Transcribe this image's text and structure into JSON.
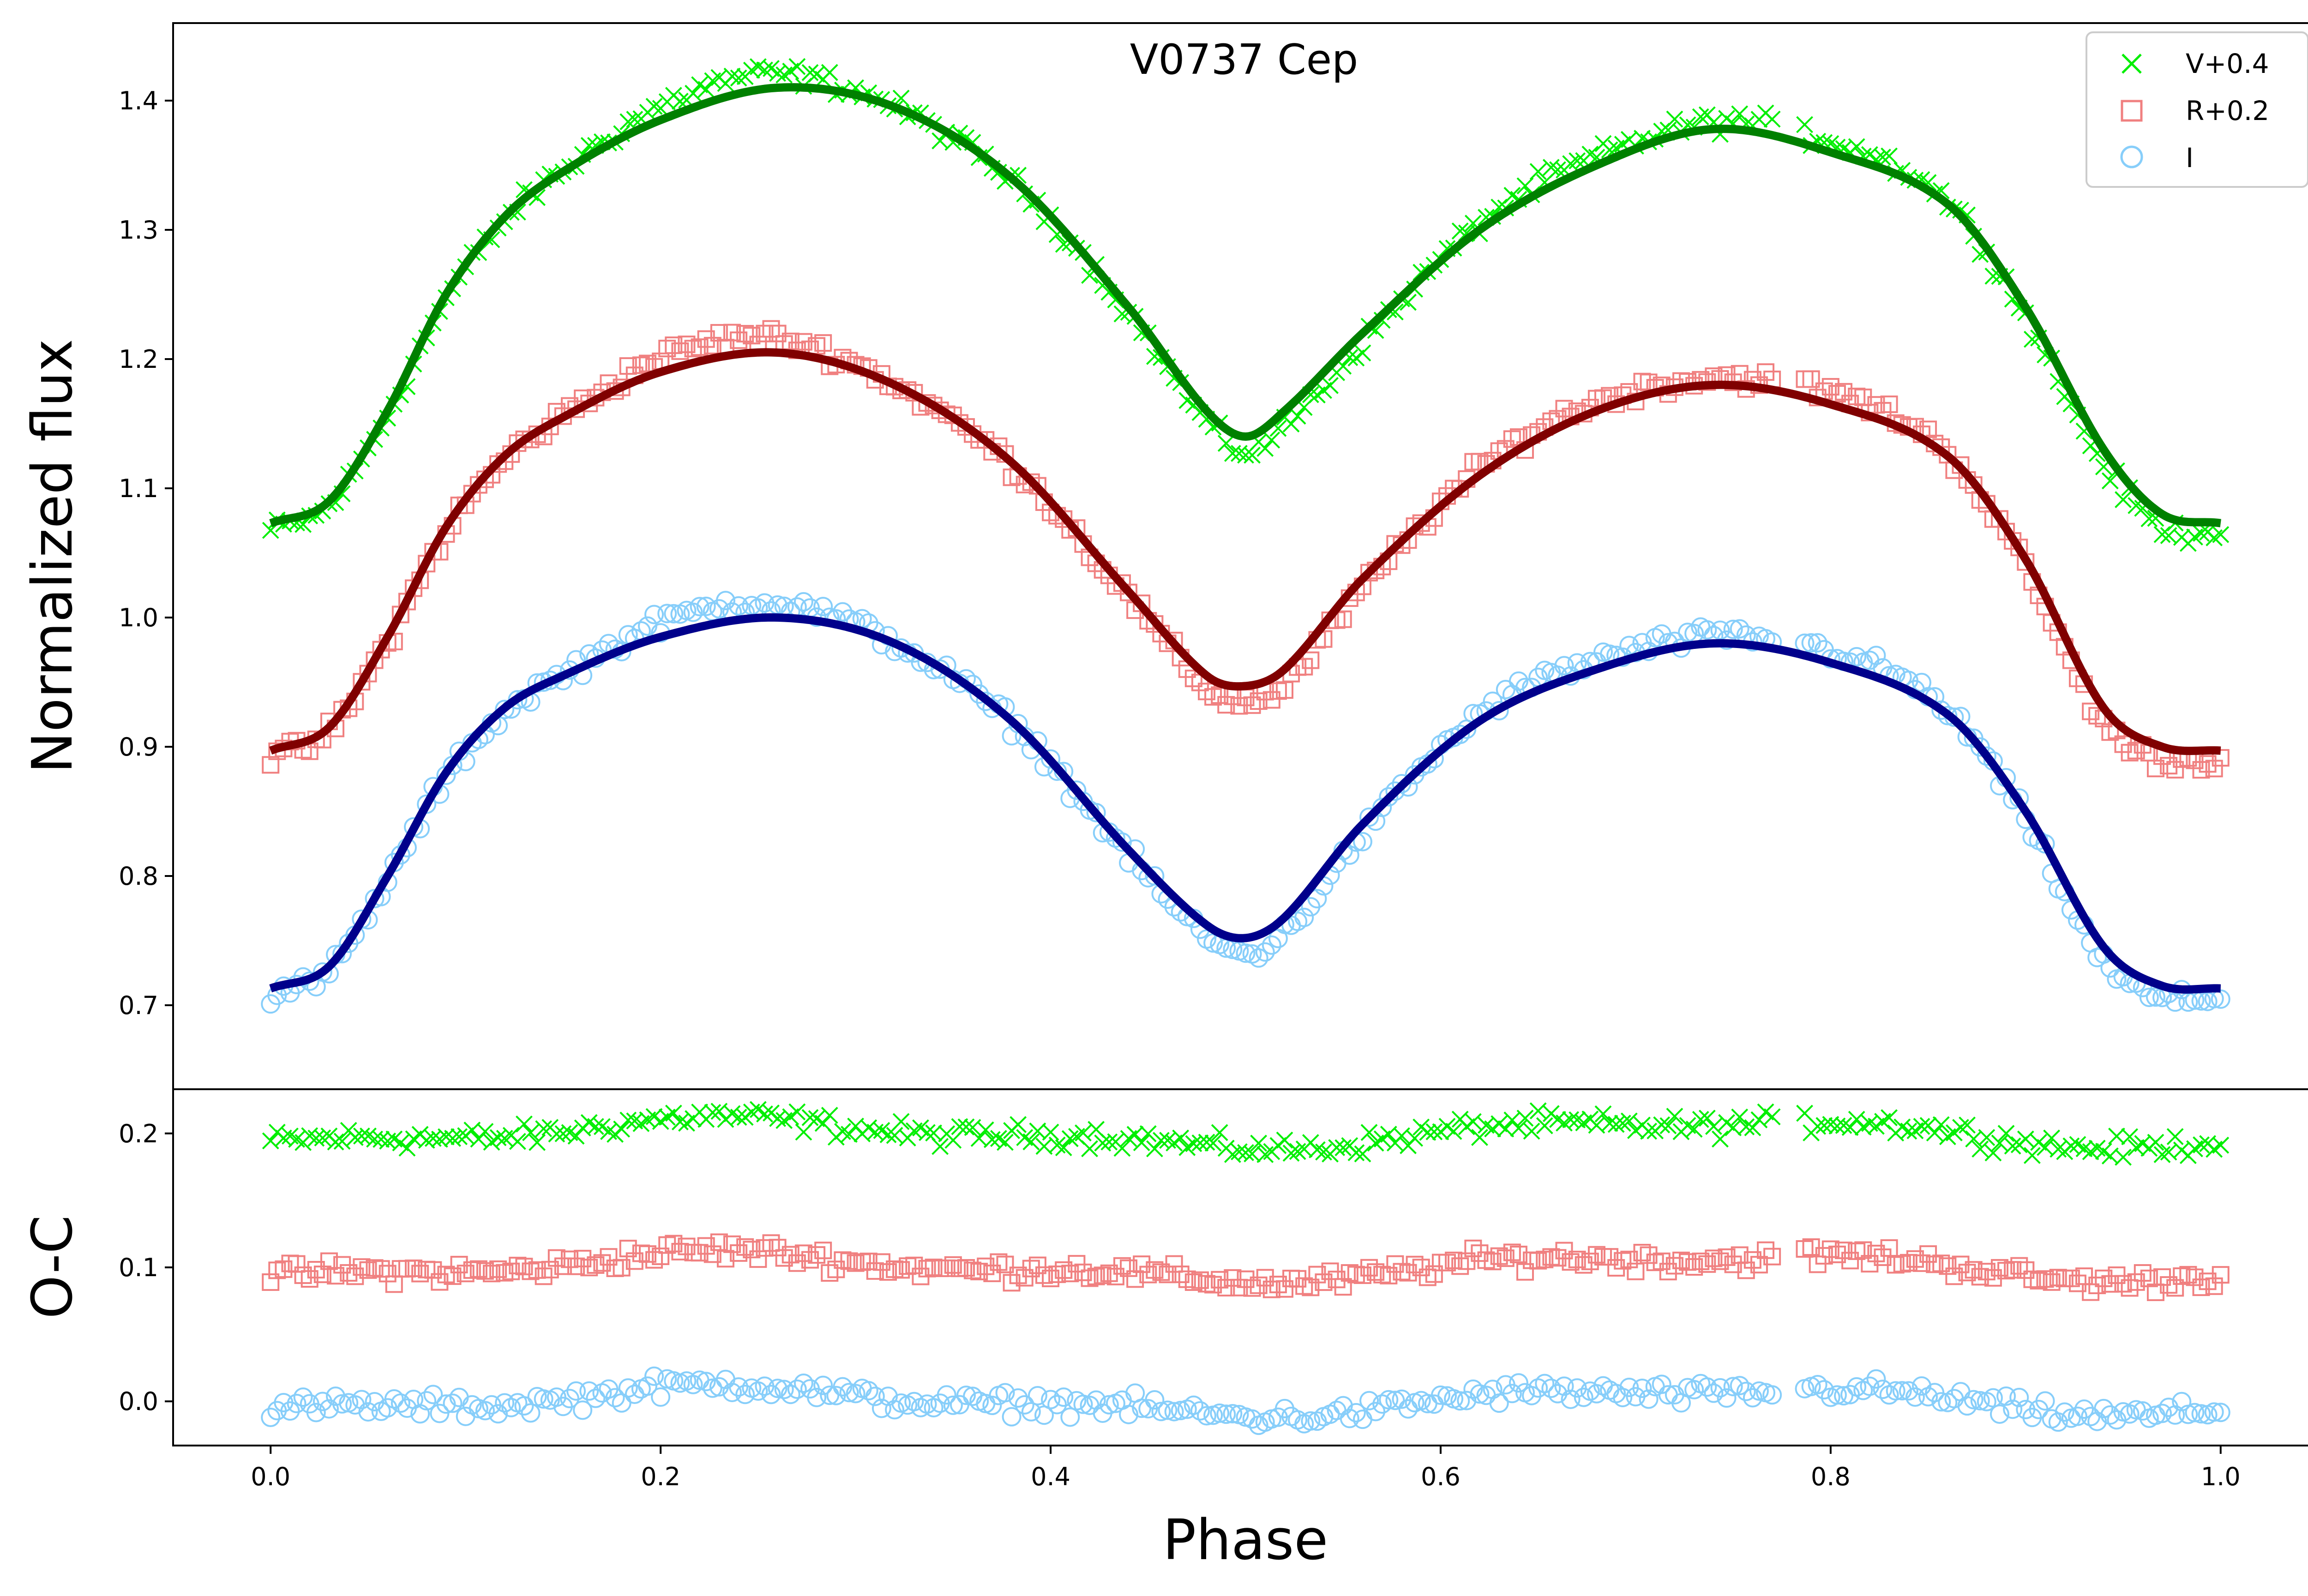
{
  "chart_data": {
    "type": "scatter",
    "title": "V0737 Cep",
    "xlabel": "Phase",
    "xlim": [
      -0.05,
      1.05
    ],
    "xticks": [
      "0.0",
      "0.2",
      "0.4",
      "0.6",
      "0.8",
      "1.0"
    ],
    "colors": {
      "V_points": "#00ee00",
      "R_points": "#f08080",
      "I_points": "#87cefa",
      "V_fit": "#008000",
      "R_fit": "#800000",
      "I_fit": "#00008b"
    },
    "legend": {
      "position": "top-right",
      "entries": [
        {
          "label": "V+0.4",
          "marker": "x",
          "color": "#00ee00"
        },
        {
          "label": "R+0.2",
          "marker": "square",
          "color": "#f08080"
        },
        {
          "label": "I",
          "marker": "circle",
          "color": "#87cefa"
        }
      ]
    },
    "top_panel": {
      "ylabel": "Normalized flux",
      "ylim": [
        0.635,
        1.46
      ],
      "yticks": [
        "0.7",
        "0.8",
        "0.9",
        "1.0",
        "1.1",
        "1.2",
        "1.3",
        "1.4"
      ],
      "series": [
        {
          "name": "V+0.4",
          "fit_x": [
            0.0,
            0.03,
            0.06,
            0.09,
            0.12,
            0.15,
            0.2,
            0.26,
            0.32,
            0.38,
            0.44,
            0.48,
            0.5,
            0.52,
            0.56,
            0.62,
            0.68,
            0.74,
            0.8,
            0.86,
            0.9,
            0.94,
            0.97,
            1.0
          ],
          "fit_y": [
            1.073,
            1.09,
            1.16,
            1.25,
            1.31,
            1.345,
            1.385,
            1.41,
            1.395,
            1.34,
            1.24,
            1.16,
            1.14,
            1.16,
            1.22,
            1.3,
            1.35,
            1.378,
            1.36,
            1.32,
            1.24,
            1.13,
            1.08,
            1.073
          ]
        },
        {
          "name": "R+0.2",
          "fit_x": [
            0.0,
            0.03,
            0.06,
            0.09,
            0.12,
            0.15,
            0.2,
            0.26,
            0.32,
            0.38,
            0.44,
            0.48,
            0.5,
            0.52,
            0.56,
            0.62,
            0.68,
            0.74,
            0.8,
            0.86,
            0.9,
            0.94,
            0.97,
            1.0
          ],
          "fit_y": [
            0.897,
            0.915,
            0.985,
            1.07,
            1.125,
            1.155,
            1.19,
            1.205,
            1.18,
            1.12,
            1.02,
            0.955,
            0.947,
            0.96,
            1.03,
            1.11,
            1.16,
            1.18,
            1.165,
            1.125,
            1.045,
            0.93,
            0.9,
            0.897
          ]
        },
        {
          "name": "I",
          "fit_x": [
            0.0,
            0.03,
            0.06,
            0.09,
            0.12,
            0.15,
            0.2,
            0.26,
            0.32,
            0.38,
            0.44,
            0.48,
            0.5,
            0.52,
            0.56,
            0.62,
            0.68,
            0.74,
            0.8,
            0.86,
            0.9,
            0.94,
            0.97,
            1.0
          ],
          "fit_y": [
            0.713,
            0.73,
            0.8,
            0.88,
            0.93,
            0.955,
            0.985,
            1.0,
            0.98,
            0.92,
            0.82,
            0.762,
            0.752,
            0.768,
            0.84,
            0.92,
            0.96,
            0.98,
            0.965,
            0.925,
            0.85,
            0.745,
            0.715,
            0.713
          ]
        }
      ]
    },
    "bottom_panel": {
      "ylabel": "O-C",
      "ylim": [
        -0.033,
        0.233
      ],
      "yticks": [
        "0.0",
        "0.1",
        "0.2"
      ],
      "series": [
        {
          "name": "V+0.4",
          "residual_level": 0.2
        },
        {
          "name": "R+0.2",
          "residual_level": 0.1
        },
        {
          "name": "I",
          "residual_level": 0.0
        }
      ],
      "phase_gap": [
        0.77,
        0.785
      ]
    }
  }
}
